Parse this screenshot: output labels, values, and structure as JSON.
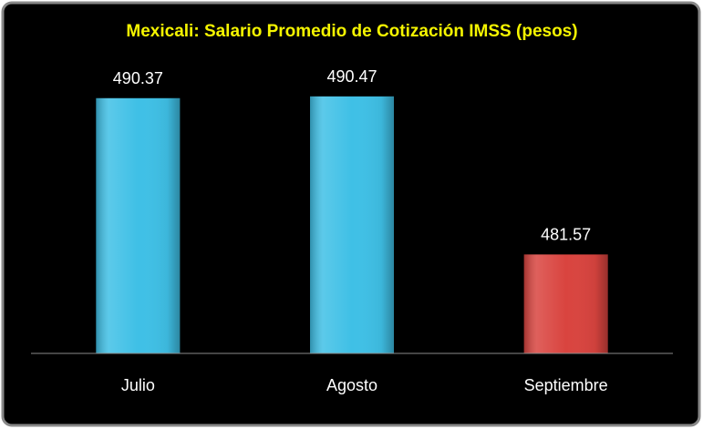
{
  "chart_data": {
    "type": "bar",
    "title": "Mexicali: Salario Promedio de Cotización IMSS  (pesos)",
    "categories": [
      "Julio",
      "Agosto",
      "Septiembre"
    ],
    "values": [
      490.37,
      490.47,
      481.57
    ],
    "colors": [
      "#3fc0e6",
      "#3fc0e6",
      "#d9443f"
    ],
    "ylim": [
      476,
      494
    ]
  }
}
